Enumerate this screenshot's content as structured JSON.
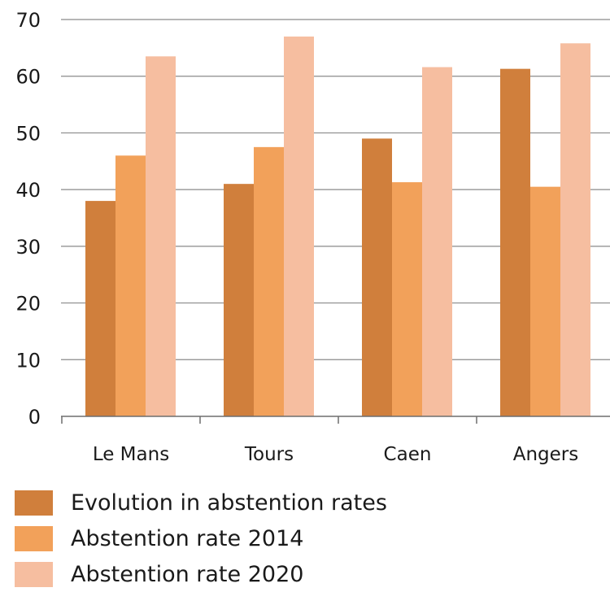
{
  "chart_data": {
    "type": "bar",
    "categories": [
      "Le Mans",
      "Tours",
      "Caen",
      "Angers"
    ],
    "series": [
      {
        "name": "Evolution in abstention rates",
        "color": "#d07f3c",
        "values": [
          38,
          41,
          49,
          61.3
        ]
      },
      {
        "name": "Abstention rate 2014",
        "color": "#f2a15a",
        "values": [
          46,
          47.5,
          41.3,
          40.5
        ]
      },
      {
        "name": "Abstention rate 2020",
        "color": "#f6bea0",
        "values": [
          63.5,
          67,
          61.6,
          65.8
        ]
      }
    ],
    "yticks": [
      "0",
      "10",
      "20",
      "30",
      "40",
      "50",
      "60",
      "70"
    ],
    "ylim": [
      0,
      70
    ],
    "grid": true,
    "legend_position": "bottom-left",
    "title": "",
    "xlabel": "",
    "ylabel": ""
  }
}
